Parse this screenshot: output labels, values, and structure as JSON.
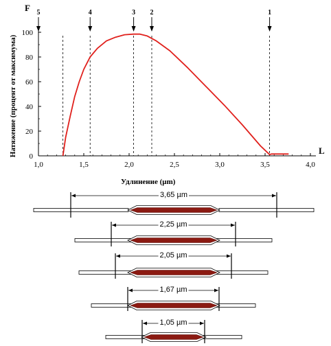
{
  "colors": {
    "curve": "#e0201c",
    "fiber_fill": "#8b1a12",
    "fiber_edge": "#5a0f0a",
    "axis": "#000000"
  },
  "chart_data": {
    "type": "line",
    "x_axis_letter": "L",
    "y_axis_letter": "F",
    "xlabel": "Удлинение (µm)",
    "ylabel": "Натяжение (процент от максимума)",
    "xlim": [
      1.0,
      4.0
    ],
    "ylim": [
      0,
      100
    ],
    "x_ticks": [
      "1,0",
      "1,5",
      "2,0",
      "2,5",
      "3,0",
      "3,5",
      "4,0"
    ],
    "x_tick_values": [
      1.0,
      1.5,
      2.0,
      2.5,
      3.0,
      3.5,
      4.0
    ],
    "y_ticks": [
      "0",
      "20",
      "40",
      "60",
      "80",
      "100"
    ],
    "y_tick_values": [
      0,
      20,
      40,
      60,
      80,
      100
    ],
    "series": [
      {
        "x": [
          1.27,
          1.3,
          1.35,
          1.4,
          1.45,
          1.5,
          1.57,
          1.65,
          1.75,
          1.85,
          1.95,
          2.05,
          2.12,
          2.2,
          2.3,
          2.45,
          2.65,
          2.85,
          3.05,
          3.25,
          3.45,
          3.55,
          3.57,
          3.65,
          3.76
        ],
        "y": [
          0,
          15,
          32,
          48,
          60,
          70,
          80,
          87,
          93,
          96,
          98,
          98.5,
          98.5,
          97,
          93,
          85,
          71,
          56,
          41,
          25,
          8,
          1,
          1.5,
          1.5,
          1.5
        ]
      }
    ],
    "markers": [
      {
        "label": "1",
        "x": 3.55
      },
      {
        "label": "2",
        "x": 2.25
      },
      {
        "label": "3",
        "x": 2.05
      },
      {
        "label": "4",
        "x": 1.57
      },
      {
        "label": "5",
        "x": 1.0
      }
    ],
    "dashed_lines_x": [
      1.27,
      1.57,
      2.05,
      2.25,
      3.55
    ],
    "sarcomere_lengths": [
      "3,65 µm",
      "2,25 µm",
      "2,05 µm",
      "1,67 µm",
      "1,05 µm"
    ],
    "grid": false
  }
}
